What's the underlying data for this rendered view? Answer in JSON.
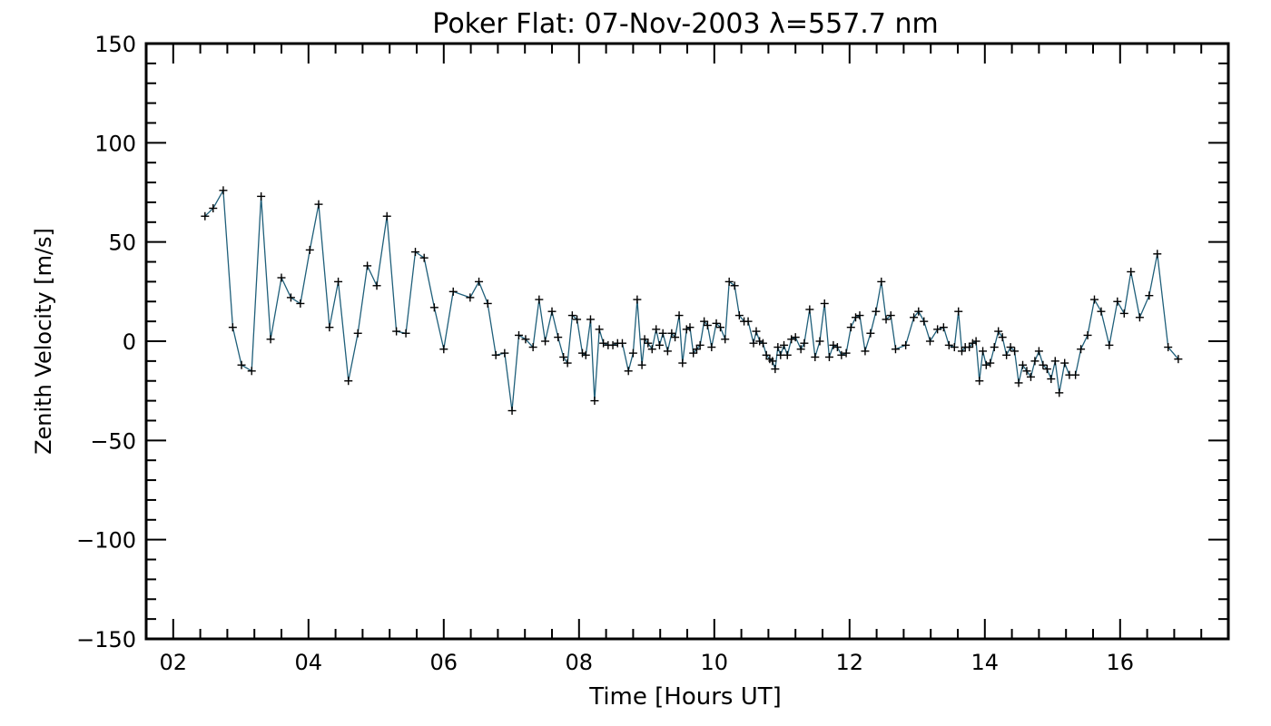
{
  "chart_data": {
    "type": "line",
    "title": "Poker Flat: 07-Nov-2003 λ=557.7 nm",
    "xlabel": "Time [Hours UT]",
    "ylabel": "Zenith Velocity [m/s]",
    "xlim": [
      1.6,
      17.6
    ],
    "ylim": [
      -150,
      150
    ],
    "x_ticks": [
      2,
      4,
      6,
      8,
      10,
      12,
      14,
      16
    ],
    "x_tick_labels": [
      "02",
      "04",
      "06",
      "08",
      "10",
      "12",
      "14",
      "16"
    ],
    "y_ticks": [
      -150,
      -100,
      -50,
      0,
      50,
      100,
      150
    ],
    "y_tick_labels": [
      "−150",
      "−100",
      "−50",
      "0",
      "50",
      "100",
      "150"
    ],
    "marker": "plus",
    "line_color": "#1f5f7a",
    "marker_color": "#000000",
    "series": [
      {
        "name": "Zenith Velocity",
        "points": [
          [
            2.47,
            63
          ],
          [
            2.59,
            67
          ],
          [
            2.74,
            76
          ],
          [
            2.88,
            7
          ],
          [
            3.01,
            -12
          ],
          [
            3.16,
            -15
          ],
          [
            3.3,
            73
          ],
          [
            3.44,
            1
          ],
          [
            3.6,
            32
          ],
          [
            3.74,
            22
          ],
          [
            3.88,
            19
          ],
          [
            4.02,
            46
          ],
          [
            4.15,
            69
          ],
          [
            4.31,
            7
          ],
          [
            4.44,
            30
          ],
          [
            4.59,
            -20
          ],
          [
            4.73,
            4
          ],
          [
            4.87,
            38
          ],
          [
            5.01,
            28
          ],
          [
            5.16,
            63
          ],
          [
            5.3,
            5
          ],
          [
            5.44,
            4
          ],
          [
            5.58,
            45
          ],
          [
            5.71,
            42
          ],
          [
            5.86,
            17
          ],
          [
            6.0,
            -4
          ],
          [
            6.14,
            25
          ],
          [
            6.39,
            22
          ],
          [
            6.52,
            30
          ],
          [
            6.65,
            19
          ],
          [
            6.77,
            -7
          ],
          [
            6.9,
            -6
          ],
          [
            7.01,
            -35
          ],
          [
            7.11,
            3
          ],
          [
            7.21,
            1
          ],
          [
            7.32,
            -3
          ],
          [
            7.41,
            21
          ],
          [
            7.5,
            0
          ],
          [
            7.6,
            15
          ],
          [
            7.69,
            2
          ],
          [
            7.77,
            -8
          ],
          [
            7.83,
            -11
          ],
          [
            7.9,
            13
          ],
          [
            7.97,
            11
          ],
          [
            8.05,
            -6
          ],
          [
            8.1,
            -7
          ],
          [
            8.17,
            11
          ],
          [
            8.23,
            -30
          ],
          [
            8.3,
            6
          ],
          [
            8.36,
            -1
          ],
          [
            8.43,
            -2
          ],
          [
            8.5,
            -2
          ],
          [
            8.57,
            -1
          ],
          [
            8.64,
            -1
          ],
          [
            8.73,
            -15
          ],
          [
            8.8,
            -6
          ],
          [
            8.86,
            21
          ],
          [
            8.93,
            -12
          ],
          [
            8.97,
            1
          ],
          [
            9.02,
            -1
          ],
          [
            9.08,
            -4
          ],
          [
            9.14,
            6
          ],
          [
            9.19,
            -2
          ],
          [
            9.24,
            4
          ],
          [
            9.31,
            -5
          ],
          [
            9.37,
            4
          ],
          [
            9.42,
            2
          ],
          [
            9.48,
            13
          ],
          [
            9.53,
            -11
          ],
          [
            9.59,
            6
          ],
          [
            9.64,
            7
          ],
          [
            9.69,
            -6
          ],
          [
            9.74,
            -4
          ],
          [
            9.79,
            -2
          ],
          [
            9.85,
            10
          ],
          [
            9.9,
            8
          ],
          [
            9.96,
            -3
          ],
          [
            10.03,
            9
          ],
          [
            10.09,
            7
          ],
          [
            10.16,
            1
          ],
          [
            10.22,
            30
          ],
          [
            10.3,
            28
          ],
          [
            10.37,
            13
          ],
          [
            10.44,
            10
          ],
          [
            10.5,
            10
          ],
          [
            10.58,
            -1
          ],
          [
            10.62,
            5
          ],
          [
            10.67,
            0
          ],
          [
            10.72,
            -1
          ],
          [
            10.77,
            -7
          ],
          [
            10.82,
            -9
          ],
          [
            10.86,
            -10
          ],
          [
            10.9,
            -14
          ],
          [
            10.94,
            -3
          ],
          [
            10.98,
            -7
          ],
          [
            11.03,
            -2
          ],
          [
            11.08,
            -7
          ],
          [
            11.14,
            1
          ],
          [
            11.2,
            2
          ],
          [
            11.28,
            -4
          ],
          [
            11.33,
            -1
          ],
          [
            11.41,
            16
          ],
          [
            11.49,
            -8
          ],
          [
            11.56,
            0
          ],
          [
            11.63,
            19
          ],
          [
            11.7,
            -8
          ],
          [
            11.76,
            -2
          ],
          [
            11.82,
            -3
          ],
          [
            11.88,
            -7
          ],
          [
            11.95,
            -6
          ],
          [
            12.02,
            7
          ],
          [
            12.09,
            12
          ],
          [
            12.15,
            13
          ],
          [
            12.23,
            -5
          ],
          [
            12.31,
            4
          ],
          [
            12.39,
            15
          ],
          [
            12.47,
            30
          ],
          [
            12.54,
            11
          ],
          [
            12.61,
            13
          ],
          [
            12.68,
            -4
          ],
          [
            12.83,
            -2
          ],
          [
            12.95,
            12
          ],
          [
            13.02,
            15
          ],
          [
            13.1,
            10
          ],
          [
            13.19,
            0
          ],
          [
            13.3,
            6
          ],
          [
            13.39,
            7
          ],
          [
            13.47,
            -2
          ],
          [
            13.55,
            -3
          ],
          [
            13.61,
            15
          ],
          [
            13.66,
            -5
          ],
          [
            13.71,
            -3
          ],
          [
            13.77,
            -3
          ],
          [
            13.82,
            -1
          ],
          [
            13.87,
            0
          ],
          [
            13.92,
            -20
          ],
          [
            13.97,
            -5
          ],
          [
            14.02,
            -12
          ],
          [
            14.08,
            -11
          ],
          [
            14.14,
            -3
          ],
          [
            14.2,
            5
          ],
          [
            14.26,
            2
          ],
          [
            14.32,
            -7
          ],
          [
            14.38,
            -3
          ],
          [
            14.44,
            -5
          ],
          [
            14.5,
            -21
          ],
          [
            14.56,
            -12
          ],
          [
            14.62,
            -15
          ],
          [
            14.68,
            -18
          ],
          [
            14.74,
            -10
          ],
          [
            14.8,
            -5
          ],
          [
            14.86,
            -12
          ],
          [
            14.92,
            -14
          ],
          [
            14.98,
            -19
          ],
          [
            15.04,
            -10
          ],
          [
            15.1,
            -26
          ],
          [
            15.18,
            -11
          ],
          [
            15.25,
            -17
          ],
          [
            15.34,
            -17
          ],
          [
            15.42,
            -4
          ],
          [
            15.52,
            3
          ],
          [
            15.62,
            21
          ],
          [
            15.72,
            15
          ],
          [
            15.84,
            -2
          ],
          [
            15.96,
            20
          ],
          [
            16.06,
            14
          ],
          [
            16.16,
            35
          ],
          [
            16.29,
            12
          ],
          [
            16.43,
            23
          ],
          [
            16.55,
            44
          ],
          [
            16.71,
            -3
          ],
          [
            16.86,
            -9
          ]
        ]
      }
    ]
  }
}
